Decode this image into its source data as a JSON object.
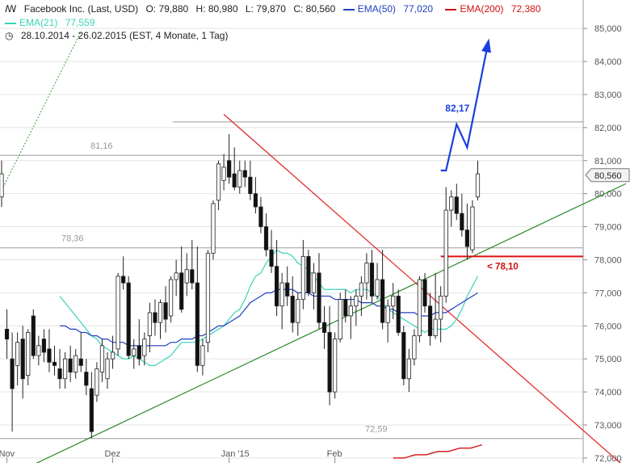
{
  "header": {
    "instrument": "Facebook Inc. (Last, USD)",
    "open": "O: 79,880",
    "high": "H: 80,980",
    "low": "L: 79,870",
    "close": "C: 80,560",
    "ema50_label": "EMA(50)",
    "ema50_value": "77,020",
    "ema200_label": "EMA(200)",
    "ema200_value": "72,380",
    "ema21_label": "EMA(21)",
    "ema21_value": "77,559",
    "range": "28.10.2014 - 26.02.2015 (EST, 4 Monate, 1 Tag)"
  },
  "colors": {
    "ema50": "#1f3fbf",
    "ema200": "#d01010",
    "ema21": "#39d4b8",
    "trend_up": "#2a8a2a",
    "trend_down": "#e02020",
    "projection": "#1a3fe0",
    "grid": "#e4e4e4"
  },
  "chart_data": {
    "type": "candlestick",
    "ylim": [
      71.8,
      85.4
    ],
    "yticks": [
      "72,000",
      "73,000",
      "74,000",
      "75,000",
      "76,000",
      "77,000",
      "78,000",
      "79,000",
      "80,000",
      "81,000",
      "82,000",
      "83,000",
      "84,000",
      "85,000"
    ],
    "ytick_values": [
      72,
      73,
      74,
      75,
      76,
      77,
      78,
      79,
      80,
      81,
      82,
      83,
      84,
      85
    ],
    "x_labels": [
      {
        "label": "Nov",
        "index": 1
      },
      {
        "label": "Dez",
        "index": 21
      },
      {
        "label": "Jan '15",
        "index": 43
      },
      {
        "label": "Feb",
        "index": 63
      }
    ],
    "current_price": "80,560",
    "current_price_value": 80.56,
    "candles": [
      {
        "o": 79.9,
        "h": 81.0,
        "l": 79.6,
        "c": 80.6
      },
      {
        "o": 75.9,
        "h": 76.5,
        "l": 75.0,
        "c": 75.6
      },
      {
        "o": 75.0,
        "h": 75.8,
        "l": 72.8,
        "c": 74.1
      },
      {
        "o": 74.8,
        "h": 75.8,
        "l": 74.2,
        "c": 75.5
      },
      {
        "o": 75.6,
        "h": 76.0,
        "l": 73.8,
        "c": 74.4
      },
      {
        "o": 74.5,
        "h": 75.9,
        "l": 74.2,
        "c": 75.8
      },
      {
        "o": 76.3,
        "h": 76.5,
        "l": 75.0,
        "c": 75.1
      },
      {
        "o": 75.1,
        "h": 75.7,
        "l": 74.8,
        "c": 75.4
      },
      {
        "o": 75.6,
        "h": 75.9,
        "l": 74.9,
        "c": 75.2
      },
      {
        "o": 75.3,
        "h": 75.9,
        "l": 74.6,
        "c": 74.9
      },
      {
        "o": 74.9,
        "h": 75.4,
        "l": 74.5,
        "c": 74.8
      },
      {
        "o": 74.7,
        "h": 75.3,
        "l": 74.1,
        "c": 74.4
      },
      {
        "o": 74.4,
        "h": 75.2,
        "l": 74.1,
        "c": 75.0
      },
      {
        "o": 75.0,
        "h": 75.4,
        "l": 74.3,
        "c": 74.6
      },
      {
        "o": 74.6,
        "h": 75.3,
        "l": 74.4,
        "c": 75.1
      },
      {
        "o": 75.0,
        "h": 75.8,
        "l": 74.6,
        "c": 74.8
      },
      {
        "o": 74.6,
        "h": 75.0,
        "l": 73.9,
        "c": 74.2
      },
      {
        "o": 74.1,
        "h": 74.6,
        "l": 72.6,
        "c": 72.8
      },
      {
        "o": 73.9,
        "h": 74.9,
        "l": 73.7,
        "c": 74.7
      },
      {
        "o": 74.6,
        "h": 75.6,
        "l": 74.3,
        "c": 75.4
      },
      {
        "o": 74.4,
        "h": 75.2,
        "l": 74.1,
        "c": 75.0
      },
      {
        "o": 75.0,
        "h": 75.7,
        "l": 74.7,
        "c": 75.2
      },
      {
        "o": 75.3,
        "h": 77.6,
        "l": 75.1,
        "c": 77.5
      },
      {
        "o": 77.5,
        "h": 78.1,
        "l": 77.1,
        "c": 77.3
      },
      {
        "o": 77.3,
        "h": 77.5,
        "l": 75.0,
        "c": 75.1
      },
      {
        "o": 75.1,
        "h": 75.6,
        "l": 74.7,
        "c": 75.3
      },
      {
        "o": 75.4,
        "h": 76.2,
        "l": 74.8,
        "c": 75.0
      },
      {
        "o": 75.1,
        "h": 75.8,
        "l": 74.8,
        "c": 75.6
      },
      {
        "o": 75.7,
        "h": 76.7,
        "l": 75.2,
        "c": 76.4
      },
      {
        "o": 76.4,
        "h": 76.8,
        "l": 75.7,
        "c": 76.1
      },
      {
        "o": 76.1,
        "h": 76.8,
        "l": 75.6,
        "c": 76.7
      },
      {
        "o": 76.7,
        "h": 77.2,
        "l": 75.8,
        "c": 76.2
      },
      {
        "o": 76.3,
        "h": 77.5,
        "l": 76.1,
        "c": 77.4
      },
      {
        "o": 77.4,
        "h": 78.0,
        "l": 76.9,
        "c": 77.6
      },
      {
        "o": 77.6,
        "h": 78.4,
        "l": 76.4,
        "c": 76.5
      },
      {
        "o": 77.3,
        "h": 78.2,
        "l": 76.9,
        "c": 77.7
      },
      {
        "o": 77.7,
        "h": 78.6,
        "l": 77.1,
        "c": 77.3
      },
      {
        "o": 77.3,
        "h": 78.4,
        "l": 74.6,
        "c": 74.8
      },
      {
        "o": 74.8,
        "h": 75.6,
        "l": 74.5,
        "c": 75.4
      },
      {
        "o": 75.5,
        "h": 78.3,
        "l": 75.2,
        "c": 78.2
      },
      {
        "o": 78.2,
        "h": 79.8,
        "l": 78.0,
        "c": 79.7
      },
      {
        "o": 79.8,
        "h": 81.0,
        "l": 79.5,
        "c": 80.9
      },
      {
        "o": 80.4,
        "h": 81.2,
        "l": 80.1,
        "c": 80.8
      },
      {
        "o": 81.0,
        "h": 81.8,
        "l": 80.3,
        "c": 80.5
      },
      {
        "o": 80.6,
        "h": 81.4,
        "l": 80.1,
        "c": 80.2
      },
      {
        "o": 80.2,
        "h": 81.0,
        "l": 80.0,
        "c": 80.7
      },
      {
        "o": 80.7,
        "h": 81.0,
        "l": 80.2,
        "c": 80.5
      },
      {
        "o": 80.5,
        "h": 81.0,
        "l": 79.8,
        "c": 80.0
      },
      {
        "o": 80.0,
        "h": 80.5,
        "l": 79.4,
        "c": 79.6
      },
      {
        "o": 79.6,
        "h": 79.9,
        "l": 78.8,
        "c": 79.0
      },
      {
        "o": 79.0,
        "h": 79.4,
        "l": 78.1,
        "c": 78.3
      },
      {
        "o": 78.3,
        "h": 78.9,
        "l": 77.6,
        "c": 77.8
      },
      {
        "o": 77.8,
        "h": 78.6,
        "l": 76.3,
        "c": 76.6
      },
      {
        "o": 76.6,
        "h": 77.6,
        "l": 75.9,
        "c": 77.3
      },
      {
        "o": 77.3,
        "h": 77.8,
        "l": 76.6,
        "c": 76.9
      },
      {
        "o": 76.9,
        "h": 77.5,
        "l": 75.8,
        "c": 76.1
      },
      {
        "o": 76.1,
        "h": 77.0,
        "l": 75.7,
        "c": 76.8
      },
      {
        "o": 76.8,
        "h": 78.6,
        "l": 76.5,
        "c": 78.1
      },
      {
        "o": 78.1,
        "h": 78.3,
        "l": 76.9,
        "c": 77.0
      },
      {
        "o": 77.0,
        "h": 77.9,
        "l": 76.5,
        "c": 77.6
      },
      {
        "o": 77.6,
        "h": 78.2,
        "l": 75.9,
        "c": 76.1
      },
      {
        "o": 76.1,
        "h": 76.6,
        "l": 75.3,
        "c": 75.8
      },
      {
        "o": 75.8,
        "h": 76.6,
        "l": 73.6,
        "c": 74.0
      },
      {
        "o": 74.0,
        "h": 75.8,
        "l": 73.8,
        "c": 75.6
      },
      {
        "o": 75.6,
        "h": 77.0,
        "l": 75.5,
        "c": 76.8
      },
      {
        "o": 76.8,
        "h": 77.1,
        "l": 76.1,
        "c": 76.3
      },
      {
        "o": 76.3,
        "h": 76.9,
        "l": 75.6,
        "c": 76.6
      },
      {
        "o": 76.6,
        "h": 77.1,
        "l": 76.0,
        "c": 76.9
      },
      {
        "o": 76.9,
        "h": 77.5,
        "l": 76.3,
        "c": 77.3
      },
      {
        "o": 77.3,
        "h": 78.2,
        "l": 76.8,
        "c": 77.9
      },
      {
        "o": 77.9,
        "h": 78.3,
        "l": 76.7,
        "c": 76.9
      },
      {
        "o": 76.9,
        "h": 77.9,
        "l": 76.8,
        "c": 77.4
      },
      {
        "o": 77.4,
        "h": 78.3,
        "l": 75.9,
        "c": 76.1
      },
      {
        "o": 76.1,
        "h": 76.8,
        "l": 75.5,
        "c": 76.6
      },
      {
        "o": 76.6,
        "h": 77.3,
        "l": 76.2,
        "c": 76.9
      },
      {
        "o": 76.9,
        "h": 77.1,
        "l": 75.7,
        "c": 75.8
      },
      {
        "o": 75.8,
        "h": 76.0,
        "l": 74.2,
        "c": 74.4
      },
      {
        "o": 74.4,
        "h": 75.3,
        "l": 74.0,
        "c": 75.0
      },
      {
        "o": 75.0,
        "h": 75.9,
        "l": 74.8,
        "c": 75.7
      },
      {
        "o": 75.7,
        "h": 77.5,
        "l": 75.5,
        "c": 77.4
      },
      {
        "o": 77.4,
        "h": 77.6,
        "l": 76.4,
        "c": 76.6
      },
      {
        "o": 76.6,
        "h": 77.0,
        "l": 75.4,
        "c": 75.7
      },
      {
        "o": 75.7,
        "h": 77.6,
        "l": 75.6,
        "c": 76.2
      },
      {
        "o": 76.2,
        "h": 77.2,
        "l": 75.5,
        "c": 76.9
      },
      {
        "o": 76.9,
        "h": 80.2,
        "l": 76.7,
        "c": 79.5
      },
      {
        "o": 79.5,
        "h": 80.1,
        "l": 79.0,
        "c": 79.9
      },
      {
        "o": 79.9,
        "h": 80.3,
        "l": 79.2,
        "c": 79.4
      },
      {
        "o": 79.4,
        "h": 80.0,
        "l": 78.7,
        "c": 78.9
      },
      {
        "o": 78.9,
        "h": 79.7,
        "l": 78.0,
        "c": 78.4
      },
      {
        "o": 78.3,
        "h": 79.8,
        "l": 78.2,
        "c": 79.6
      },
      {
        "o": 79.9,
        "h": 81.0,
        "l": 79.8,
        "c": 80.6
      }
    ],
    "ema21": [
      76.9,
      76.7,
      76.5,
      76.3,
      76.1,
      75.9,
      75.7,
      75.6,
      75.4,
      75.3,
      75.2,
      75.1,
      75.0,
      75.0,
      75.1,
      75.0,
      74.9,
      74.8,
      74.8,
      74.9,
      75.0,
      75.1,
      75.3,
      75.5,
      75.5,
      75.5,
      75.5,
      75.6,
      75.7,
      75.8,
      75.9,
      76.0,
      76.2,
      76.4,
      76.5,
      76.8,
      77.2,
      77.5,
      77.6,
      77.9,
      78.1,
      78.3,
      78.2,
      78.2,
      78.1,
      77.9,
      77.8,
      77.7,
      77.5,
      77.3,
      77.1,
      77.1,
      77.1,
      77.1,
      77.1,
      77.0,
      77.1,
      77.1,
      77.1,
      77.0,
      76.9,
      76.7,
      76.5,
      76.4,
      76.3,
      76.2,
      76.1,
      76.0,
      75.9,
      75.8,
      75.9,
      75.9,
      75.9,
      75.9,
      76.0,
      76.2,
      76.5,
      76.9,
      77.2,
      77.5
    ],
    "ema50": [
      76.0,
      76.0,
      75.9,
      75.9,
      75.8,
      75.8,
      75.7,
      75.7,
      75.6,
      75.6,
      75.5,
      75.5,
      75.5,
      75.4,
      75.4,
      75.4,
      75.4,
      75.4,
      75.4,
      75.4,
      75.4,
      75.5,
      75.5,
      75.6,
      75.6,
      75.6,
      75.7,
      75.7,
      75.8,
      75.9,
      76.0,
      76.0,
      76.1,
      76.2,
      76.3,
      76.5,
      76.7,
      76.8,
      76.9,
      77.0,
      77.0,
      77.1,
      77.1,
      77.1,
      77.1,
      77.0,
      77.0,
      77.0,
      76.9,
      76.9,
      76.9,
      76.9,
      76.8,
      76.8,
      76.8,
      76.8,
      76.8,
      76.7,
      76.7,
      76.7,
      76.6,
      76.6,
      76.5,
      76.5,
      76.4,
      76.4,
      76.4,
      76.4,
      76.3,
      76.3,
      76.3,
      76.4,
      76.4,
      76.4,
      76.5,
      76.6,
      76.7,
      76.8,
      76.9,
      77.0
    ],
    "ema200": [
      72.0,
      72.0,
      72.1,
      72.1,
      72.2,
      72.2,
      72.3,
      72.3,
      72.4
    ],
    "horizontal_levels": [
      {
        "value": 81.16,
        "label": "81,16"
      },
      {
        "value": 78.36,
        "label": "78,36"
      },
      {
        "value": 72.59,
        "label": "72,59"
      },
      {
        "value": 82.17,
        "label": ""
      }
    ],
    "support_label": "< 78,10",
    "support_value": 78.1,
    "target_label": "82,17",
    "target_value": 82.17,
    "projection": [
      {
        "i": 83,
        "y": 80.7
      },
      {
        "i": 84,
        "y": 80.7
      },
      {
        "i": 86,
        "y": 82.1
      },
      {
        "i": 88,
        "y": 81.4
      },
      {
        "i": 92,
        "y": 84.6
      }
    ]
  }
}
